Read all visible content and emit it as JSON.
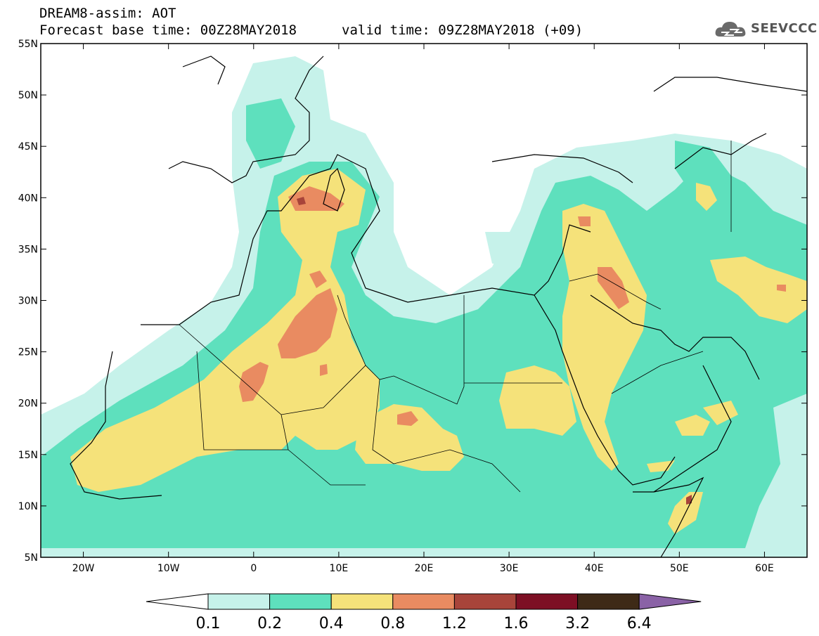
{
  "title": {
    "line1": "DREAM8-assim: AOT",
    "base_time": "Forecast base time: 00Z28MAY2018",
    "valid_time": "valid time: 09Z28MAY2018 (+09)"
  },
  "logo": {
    "text": "SEEVCCC",
    "icon": "cloud-icon"
  },
  "map": {
    "lon_ticks": [
      "20W",
      "10W",
      "0",
      "10E",
      "20E",
      "30E",
      "40E",
      "50E",
      "60E"
    ],
    "lat_ticks": [
      "55N",
      "50N",
      "45N",
      "40N",
      "35N",
      "30N",
      "25N",
      "20N",
      "15N",
      "10N",
      "5N"
    ],
    "lon_range": [
      -25,
      65
    ],
    "lat_range": [
      5,
      55
    ]
  },
  "colorbar": {
    "labels": [
      "0.1",
      "0.2",
      "0.4",
      "0.8",
      "1.2",
      "1.6",
      "3.2",
      "6.4"
    ],
    "colors": [
      "#ffffff",
      "#c6f2ea",
      "#5ee0bd",
      "#f5e27a",
      "#e98b61",
      "#a8443a",
      "#7d0f24",
      "#3e2a17",
      "#8a62a6"
    ]
  }
}
